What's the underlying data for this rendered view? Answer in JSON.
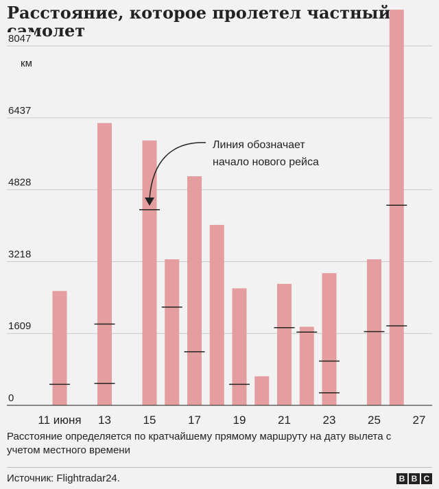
{
  "title": "Расстояние, которое пролетел частный самолет",
  "chart_data": {
    "type": "bar",
    "unit": "км",
    "yticks": [
      0,
      1609,
      3218,
      4828,
      6437,
      8047
    ],
    "ylim": [
      0,
      8300
    ],
    "xticks": [
      {
        "day": 11,
        "label": "11 июня"
      },
      {
        "day": 13,
        "label": "13"
      },
      {
        "day": 15,
        "label": "15"
      },
      {
        "day": 17,
        "label": "17"
      },
      {
        "day": 19,
        "label": "19"
      },
      {
        "day": 21,
        "label": "21"
      },
      {
        "day": 23,
        "label": "23"
      },
      {
        "day": 25,
        "label": "25"
      },
      {
        "day": 27,
        "label": "27"
      }
    ],
    "bars": [
      {
        "day": 11,
        "value": 2560,
        "flight_starts": [
          470
        ]
      },
      {
        "day": 13,
        "value": 6320,
        "flight_starts": [
          490,
          1820
        ]
      },
      {
        "day": 15,
        "value": 5930,
        "flight_starts": [
          4380
        ]
      },
      {
        "day": 16,
        "value": 3270,
        "flight_starts": [
          2200
        ]
      },
      {
        "day": 17,
        "value": 5130,
        "flight_starts": [
          1200
        ]
      },
      {
        "day": 18,
        "value": 4040,
        "flight_starts": []
      },
      {
        "day": 19,
        "value": 2620,
        "flight_starts": [
          470
        ]
      },
      {
        "day": 20,
        "value": 650,
        "flight_starts": []
      },
      {
        "day": 21,
        "value": 2720,
        "flight_starts": [
          1740
        ]
      },
      {
        "day": 22,
        "value": 1760,
        "flight_starts": [
          1640
        ]
      },
      {
        "day": 23,
        "value": 2960,
        "flight_starts": [
          280,
          990
        ]
      },
      {
        "day": 25,
        "value": 3270,
        "flight_starts": [
          1650
        ]
      },
      {
        "day": 26,
        "value": 8860,
        "flight_starts": [
          1780,
          4480
        ]
      }
    ],
    "annotation": {
      "lines": [
        "Линия обозначает",
        "начало нового рейса"
      ]
    },
    "grid": true,
    "colors": {
      "bar": "#e49e9f",
      "marker": "#222222",
      "grid": "#c8c8c8",
      "background": "#f2f2f2"
    }
  },
  "caption": "Расстояние определяется по кратчайшему прямому маршруту на дату вылета с учетом местного времени",
  "source": "Источник: Flightradar24.",
  "logo": [
    "B",
    "B",
    "C"
  ]
}
